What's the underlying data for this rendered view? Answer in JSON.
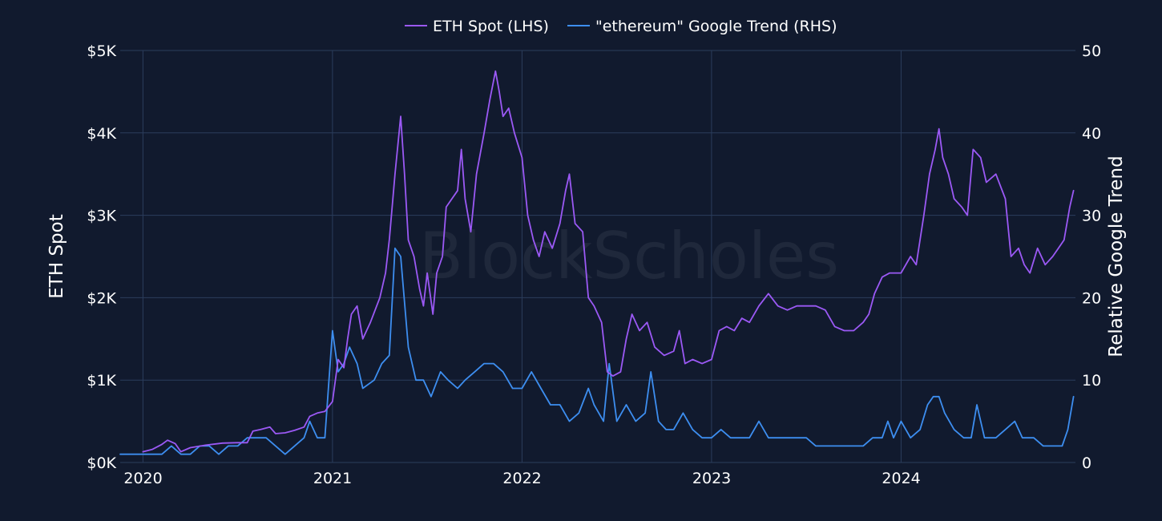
{
  "watermark": "BlockScholes",
  "chart_data": {
    "type": "line",
    "grid": true,
    "legend_position": "top-center",
    "y_left": {
      "label": "ETH Spot",
      "range": [
        0,
        5000
      ],
      "ticks": [
        0,
        1000,
        2000,
        3000,
        4000,
        5000
      ],
      "tick_labels": [
        "$0K",
        "$1K",
        "$2K",
        "$3K",
        "$4K",
        "$5K"
      ]
    },
    "y_right": {
      "label": "Relative Google Trend",
      "range": [
        0,
        50
      ],
      "ticks": [
        0,
        10,
        20,
        30,
        40,
        50
      ],
      "tick_labels": [
        "0",
        "10",
        "20",
        "30",
        "40",
        "50"
      ]
    },
    "x": {
      "range": [
        2019.88,
        2024.92
      ],
      "ticks": [
        2020,
        2021,
        2022,
        2023,
        2024
      ],
      "tick_labels": [
        "2020",
        "2021",
        "2022",
        "2023",
        "2024"
      ]
    },
    "series": [
      {
        "name": "ETH Spot (LHS)",
        "axis": "left",
        "color": "#9b59f5",
        "points": [
          [
            2020.0,
            130
          ],
          [
            2020.05,
            160
          ],
          [
            2020.1,
            220
          ],
          [
            2020.13,
            270
          ],
          [
            2020.17,
            230
          ],
          [
            2020.2,
            130
          ],
          [
            2020.25,
            180
          ],
          [
            2020.33,
            210
          ],
          [
            2020.42,
            235
          ],
          [
            2020.5,
            240
          ],
          [
            2020.55,
            240
          ],
          [
            2020.58,
            380
          ],
          [
            2020.62,
            400
          ],
          [
            2020.67,
            430
          ],
          [
            2020.7,
            350
          ],
          [
            2020.75,
            360
          ],
          [
            2020.8,
            390
          ],
          [
            2020.85,
            430
          ],
          [
            2020.88,
            560
          ],
          [
            2020.92,
            600
          ],
          [
            2020.96,
            620
          ],
          [
            2021.0,
            740
          ],
          [
            2021.03,
            1250
          ],
          [
            2021.06,
            1150
          ],
          [
            2021.08,
            1500
          ],
          [
            2021.1,
            1800
          ],
          [
            2021.13,
            1900
          ],
          [
            2021.16,
            1500
          ],
          [
            2021.2,
            1700
          ],
          [
            2021.25,
            2000
          ],
          [
            2021.28,
            2300
          ],
          [
            2021.3,
            2700
          ],
          [
            2021.33,
            3500
          ],
          [
            2021.36,
            4200
          ],
          [
            2021.38,
            3500
          ],
          [
            2021.4,
            2700
          ],
          [
            2021.43,
            2500
          ],
          [
            2021.46,
            2100
          ],
          [
            2021.48,
            1900
          ],
          [
            2021.5,
            2300
          ],
          [
            2021.53,
            1800
          ],
          [
            2021.55,
            2300
          ],
          [
            2021.58,
            2500
          ],
          [
            2021.6,
            3100
          ],
          [
            2021.63,
            3200
          ],
          [
            2021.66,
            3300
          ],
          [
            2021.68,
            3800
          ],
          [
            2021.7,
            3200
          ],
          [
            2021.73,
            2800
          ],
          [
            2021.76,
            3500
          ],
          [
            2021.8,
            4000
          ],
          [
            2021.83,
            4400
          ],
          [
            2021.86,
            4750
          ],
          [
            2021.88,
            4500
          ],
          [
            2021.9,
            4200
          ],
          [
            2021.93,
            4300
          ],
          [
            2021.96,
            4000
          ],
          [
            2022.0,
            3700
          ],
          [
            2022.03,
            3000
          ],
          [
            2022.06,
            2700
          ],
          [
            2022.09,
            2500
          ],
          [
            2022.12,
            2800
          ],
          [
            2022.16,
            2600
          ],
          [
            2022.2,
            2900
          ],
          [
            2022.23,
            3300
          ],
          [
            2022.25,
            3500
          ],
          [
            2022.28,
            2900
          ],
          [
            2022.32,
            2800
          ],
          [
            2022.35,
            2000
          ],
          [
            2022.38,
            1900
          ],
          [
            2022.42,
            1700
          ],
          [
            2022.45,
            1100
          ],
          [
            2022.48,
            1050
          ],
          [
            2022.52,
            1100
          ],
          [
            2022.55,
            1500
          ],
          [
            2022.58,
            1800
          ],
          [
            2022.62,
            1600
          ],
          [
            2022.66,
            1700
          ],
          [
            2022.7,
            1400
          ],
          [
            2022.75,
            1300
          ],
          [
            2022.8,
            1350
          ],
          [
            2022.83,
            1600
          ],
          [
            2022.86,
            1200
          ],
          [
            2022.9,
            1250
          ],
          [
            2022.95,
            1200
          ],
          [
            2023.0,
            1250
          ],
          [
            2023.04,
            1600
          ],
          [
            2023.08,
            1650
          ],
          [
            2023.12,
            1600
          ],
          [
            2023.16,
            1750
          ],
          [
            2023.2,
            1700
          ],
          [
            2023.25,
            1900
          ],
          [
            2023.3,
            2050
          ],
          [
            2023.35,
            1900
          ],
          [
            2023.4,
            1850
          ],
          [
            2023.45,
            1900
          ],
          [
            2023.5,
            1900
          ],
          [
            2023.55,
            1900
          ],
          [
            2023.6,
            1850
          ],
          [
            2023.65,
            1650
          ],
          [
            2023.7,
            1600
          ],
          [
            2023.75,
            1600
          ],
          [
            2023.8,
            1700
          ],
          [
            2023.83,
            1800
          ],
          [
            2023.86,
            2050
          ],
          [
            2023.9,
            2250
          ],
          [
            2023.94,
            2300
          ],
          [
            2024.0,
            2300
          ],
          [
            2024.05,
            2500
          ],
          [
            2024.08,
            2400
          ],
          [
            2024.12,
            3000
          ],
          [
            2024.15,
            3500
          ],
          [
            2024.18,
            3800
          ],
          [
            2024.2,
            4050
          ],
          [
            2024.22,
            3700
          ],
          [
            2024.25,
            3500
          ],
          [
            2024.28,
            3200
          ],
          [
            2024.32,
            3100
          ],
          [
            2024.35,
            3000
          ],
          [
            2024.38,
            3800
          ],
          [
            2024.42,
            3700
          ],
          [
            2024.45,
            3400
          ],
          [
            2024.5,
            3500
          ],
          [
            2024.55,
            3200
          ],
          [
            2024.58,
            2500
          ],
          [
            2024.62,
            2600
          ],
          [
            2024.65,
            2400
          ],
          [
            2024.68,
            2300
          ],
          [
            2024.72,
            2600
          ],
          [
            2024.76,
            2400
          ],
          [
            2024.8,
            2500
          ],
          [
            2024.83,
            2600
          ],
          [
            2024.86,
            2700
          ],
          [
            2024.89,
            3100
          ],
          [
            2024.91,
            3300
          ]
        ]
      },
      {
        "name": "\"ethereum\" Google Trend (RHS)",
        "axis": "right",
        "color": "#3d8ef0",
        "points": [
          [
            2019.88,
            1
          ],
          [
            2020.0,
            1
          ],
          [
            2020.1,
            1
          ],
          [
            2020.15,
            2
          ],
          [
            2020.2,
            1
          ],
          [
            2020.25,
            1
          ],
          [
            2020.3,
            2
          ],
          [
            2020.35,
            2
          ],
          [
            2020.4,
            1
          ],
          [
            2020.45,
            2
          ],
          [
            2020.5,
            2
          ],
          [
            2020.55,
            3
          ],
          [
            2020.6,
            3
          ],
          [
            2020.65,
            3
          ],
          [
            2020.7,
            2
          ],
          [
            2020.75,
            1
          ],
          [
            2020.8,
            2
          ],
          [
            2020.85,
            3
          ],
          [
            2020.88,
            5
          ],
          [
            2020.92,
            3
          ],
          [
            2020.96,
            3
          ],
          [
            2021.0,
            16
          ],
          [
            2021.03,
            11
          ],
          [
            2021.06,
            12
          ],
          [
            2021.09,
            14
          ],
          [
            2021.13,
            12
          ],
          [
            2021.16,
            9
          ],
          [
            2021.22,
            10
          ],
          [
            2021.26,
            12
          ],
          [
            2021.3,
            13
          ],
          [
            2021.33,
            26
          ],
          [
            2021.36,
            25
          ],
          [
            2021.4,
            14
          ],
          [
            2021.44,
            10
          ],
          [
            2021.48,
            10
          ],
          [
            2021.52,
            8
          ],
          [
            2021.57,
            11
          ],
          [
            2021.61,
            10
          ],
          [
            2021.66,
            9
          ],
          [
            2021.7,
            10
          ],
          [
            2021.75,
            11
          ],
          [
            2021.8,
            12
          ],
          [
            2021.85,
            12
          ],
          [
            2021.9,
            11
          ],
          [
            2021.95,
            9
          ],
          [
            2022.0,
            9
          ],
          [
            2022.05,
            11
          ],
          [
            2022.1,
            9
          ],
          [
            2022.15,
            7
          ],
          [
            2022.2,
            7
          ],
          [
            2022.25,
            5
          ],
          [
            2022.3,
            6
          ],
          [
            2022.35,
            9
          ],
          [
            2022.38,
            7
          ],
          [
            2022.43,
            5
          ],
          [
            2022.46,
            12
          ],
          [
            2022.5,
            5
          ],
          [
            2022.55,
            7
          ],
          [
            2022.6,
            5
          ],
          [
            2022.65,
            6
          ],
          [
            2022.68,
            11
          ],
          [
            2022.72,
            5
          ],
          [
            2022.76,
            4
          ],
          [
            2022.8,
            4
          ],
          [
            2022.85,
            6
          ],
          [
            2022.9,
            4
          ],
          [
            2022.95,
            3
          ],
          [
            2023.0,
            3
          ],
          [
            2023.05,
            4
          ],
          [
            2023.1,
            3
          ],
          [
            2023.15,
            3
          ],
          [
            2023.2,
            3
          ],
          [
            2023.25,
            5
          ],
          [
            2023.3,
            3
          ],
          [
            2023.35,
            3
          ],
          [
            2023.4,
            3
          ],
          [
            2023.45,
            3
          ],
          [
            2023.5,
            3
          ],
          [
            2023.55,
            2
          ],
          [
            2023.6,
            2
          ],
          [
            2023.65,
            2
          ],
          [
            2023.7,
            2
          ],
          [
            2023.75,
            2
          ],
          [
            2023.8,
            2
          ],
          [
            2023.85,
            3
          ],
          [
            2023.9,
            3
          ],
          [
            2023.93,
            5
          ],
          [
            2023.96,
            3
          ],
          [
            2024.0,
            5
          ],
          [
            2024.05,
            3
          ],
          [
            2024.1,
            4
          ],
          [
            2024.14,
            7
          ],
          [
            2024.17,
            8
          ],
          [
            2024.2,
            8
          ],
          [
            2024.23,
            6
          ],
          [
            2024.28,
            4
          ],
          [
            2024.33,
            3
          ],
          [
            2024.37,
            3
          ],
          [
            2024.4,
            7
          ],
          [
            2024.44,
            3
          ],
          [
            2024.5,
            3
          ],
          [
            2024.55,
            4
          ],
          [
            2024.6,
            5
          ],
          [
            2024.64,
            3
          ],
          [
            2024.7,
            3
          ],
          [
            2024.75,
            2
          ],
          [
            2024.8,
            2
          ],
          [
            2024.85,
            2
          ],
          [
            2024.88,
            4
          ],
          [
            2024.91,
            8
          ]
        ]
      }
    ]
  }
}
